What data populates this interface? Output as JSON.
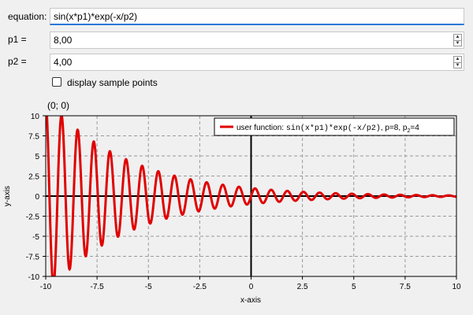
{
  "form": {
    "equation_label": "equation:",
    "equation_value": "sin(x*p1)*exp(-x/p2)",
    "p1_label": "p1 =",
    "p1_value": "8,00",
    "p2_label": "p2 =",
    "p2_value": "4,00",
    "checkbox_label": "display sample points",
    "checkbox_checked": false
  },
  "coord_readout": "(0; 0)",
  "colors": {
    "curve": "#e00000",
    "accent": "#2a78d6"
  },
  "icons": {
    "spin_up": "triangle-up-icon",
    "spin_down": "triangle-down-icon"
  },
  "chart_data": {
    "type": "line",
    "xlabel": "x-axis",
    "ylabel": "y-axis",
    "xlim": [
      -10,
      10
    ],
    "ylim": [
      -10,
      10
    ],
    "x_ticks": [
      "-10",
      "-7.5",
      "-5",
      "-2.5",
      "0",
      "2.5",
      "5",
      "7.5",
      "10"
    ],
    "y_ticks": [
      "10",
      "7.5",
      "5",
      "2.5",
      "0",
      "-2.5",
      "-5",
      "-7.5",
      "-10"
    ],
    "grid": true,
    "legend_position": "top-right",
    "series": [
      {
        "function": "sin(x*p1)*exp(-x/p2)",
        "p1": 8,
        "p2": 4,
        "legend_prefix": "user function: ",
        "legend_code": "sin(x*p1)*exp(-x/p2)",
        "legend_suffix": ", p=8, p",
        "legend_sub": "2",
        "legend_tail": "=4"
      }
    ]
  }
}
